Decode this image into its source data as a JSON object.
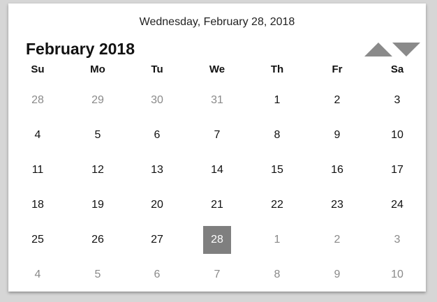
{
  "calendar": {
    "full_date": "Wednesday, February 28, 2018",
    "month_title": "February 2018",
    "nav": {
      "prev_icon": "triangle-up-icon",
      "next_icon": "triangle-down-icon"
    },
    "weekdays": [
      "Su",
      "Mo",
      "Tu",
      "We",
      "Th",
      "Fr",
      "Sa"
    ],
    "weeks": [
      [
        {
          "d": "28",
          "other": true
        },
        {
          "d": "29",
          "other": true
        },
        {
          "d": "30",
          "other": true
        },
        {
          "d": "31",
          "other": true
        },
        {
          "d": "1"
        },
        {
          "d": "2"
        },
        {
          "d": "3"
        }
      ],
      [
        {
          "d": "4"
        },
        {
          "d": "5"
        },
        {
          "d": "6"
        },
        {
          "d": "7"
        },
        {
          "d": "8"
        },
        {
          "d": "9"
        },
        {
          "d": "10"
        }
      ],
      [
        {
          "d": "11"
        },
        {
          "d": "12"
        },
        {
          "d": "13"
        },
        {
          "d": "14"
        },
        {
          "d": "15"
        },
        {
          "d": "16"
        },
        {
          "d": "17"
        }
      ],
      [
        {
          "d": "18"
        },
        {
          "d": "19"
        },
        {
          "d": "20"
        },
        {
          "d": "21"
        },
        {
          "d": "22"
        },
        {
          "d": "23"
        },
        {
          "d": "24"
        }
      ],
      [
        {
          "d": "25"
        },
        {
          "d": "26"
        },
        {
          "d": "27"
        },
        {
          "d": "28",
          "selected": true
        },
        {
          "d": "1",
          "other": true
        },
        {
          "d": "2",
          "other": true
        },
        {
          "d": "3",
          "other": true
        }
      ],
      [
        {
          "d": "4",
          "other": true
        },
        {
          "d": "5",
          "other": true
        },
        {
          "d": "6",
          "other": true
        },
        {
          "d": "7",
          "other": true
        },
        {
          "d": "8",
          "other": true
        },
        {
          "d": "9",
          "other": true
        },
        {
          "d": "10",
          "other": true
        }
      ]
    ],
    "colors": {
      "selected_bg": "#7f7f7f",
      "other_month_text": "#8a8a8a",
      "nav_arrow": "#8a8a8a"
    }
  }
}
